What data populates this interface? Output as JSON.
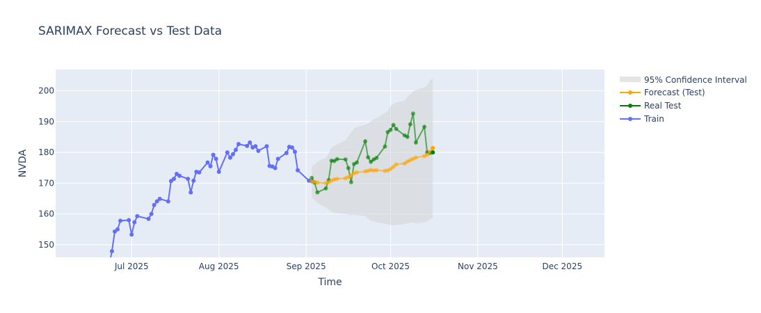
{
  "chart_data": {
    "type": "line",
    "title": "SARIMAX Forecast vs Test Data",
    "xlabel": "Time",
    "ylabel": "NVDA",
    "xlim": [
      "2025-06-04",
      "2025-12-16"
    ],
    "ylim": [
      145.9,
      206.9
    ],
    "grid": true,
    "legend_position": "right",
    "x_ticks": [
      {
        "date": "2025-07-01",
        "label": "Jul 2025"
      },
      {
        "date": "2025-08-01",
        "label": "Aug 2025"
      },
      {
        "date": "2025-09-01",
        "label": "Sep 2025"
      },
      {
        "date": "2025-10-01",
        "label": "Oct 2025"
      },
      {
        "date": "2025-11-01",
        "label": "Nov 2025"
      },
      {
        "date": "2025-12-01",
        "label": "Dec 2025"
      }
    ],
    "y_ticks": [
      150,
      160,
      170,
      180,
      190,
      200
    ],
    "confidence_interval": {
      "name": "95% Confidence Interval",
      "color": "#d3d3d3",
      "x": [
        "2025-09-03",
        "2025-09-04",
        "2025-09-05",
        "2025-09-08",
        "2025-09-09",
        "2025-09-10",
        "2025-09-11",
        "2025-09-12",
        "2025-09-15",
        "2025-09-16",
        "2025-09-17",
        "2025-09-18",
        "2025-09-19",
        "2025-09-22",
        "2025-09-23",
        "2025-09-24",
        "2025-09-25",
        "2025-09-26",
        "2025-09-29",
        "2025-09-30",
        "2025-10-01",
        "2025-10-02",
        "2025-10-03",
        "2025-10-06",
        "2025-10-07",
        "2025-10-08",
        "2025-10-09",
        "2025-10-10",
        "2025-10-13",
        "2025-10-14",
        "2025-10-15",
        "2025-10-16"
      ],
      "upper": [
        175.5,
        176.1,
        177.0,
        178.2,
        179.7,
        181.5,
        182.1,
        182.6,
        184.0,
        185.3,
        186.6,
        187.7,
        188.3,
        188.9,
        189.4,
        190.1,
        190.8,
        191.1,
        192.8,
        193.4,
        195.2,
        195.7,
        196.2,
        196.8,
        198.1,
        198.8,
        199.8,
        200.3,
        201.1,
        201.8,
        203.3,
        204.0
      ],
      "lower": [
        165.3,
        164.5,
        163.5,
        162.1,
        161.5,
        160.8,
        160.4,
        160.2,
        160.0,
        159.7,
        159.6,
        159.8,
        159.6,
        159.3,
        158.4,
        157.8,
        157.6,
        157.3,
        156.8,
        156.7,
        156.4,
        156.3,
        156.4,
        156.7,
        157.0,
        157.2,
        157.2,
        157.0,
        157.3,
        157.6,
        158.3,
        158.7
      ]
    },
    "series": [
      {
        "name": "Forecast (Test)",
        "color": "#ffa500",
        "x": [
          "2025-09-03",
          "2025-09-04",
          "2025-09-05",
          "2025-09-08",
          "2025-09-09",
          "2025-09-10",
          "2025-09-11",
          "2025-09-12",
          "2025-09-15",
          "2025-09-16",
          "2025-09-17",
          "2025-09-18",
          "2025-09-19",
          "2025-09-22",
          "2025-09-23",
          "2025-09-24",
          "2025-09-25",
          "2025-09-26",
          "2025-09-29",
          "2025-09-30",
          "2025-10-01",
          "2025-10-02",
          "2025-10-03",
          "2025-10-06",
          "2025-10-07",
          "2025-10-08",
          "2025-10-09",
          "2025-10-10",
          "2025-10-13",
          "2025-10-14",
          "2025-10-15",
          "2025-10-16"
        ],
        "y": [
          170.6,
          170.4,
          170.2,
          170.0,
          170.3,
          170.8,
          171.2,
          171.4,
          171.6,
          172.0,
          172.5,
          173.2,
          173.5,
          173.8,
          174.0,
          174.3,
          174.1,
          174.2,
          174.0,
          174.1,
          174.6,
          175.3,
          176.1,
          176.4,
          177.0,
          177.5,
          177.9,
          178.3,
          178.8,
          179.2,
          180.3,
          181.4
        ]
      },
      {
        "name": "Real Test",
        "color": "#008000",
        "x": [
          "2025-09-03",
          "2025-09-04",
          "2025-09-05",
          "2025-09-08",
          "2025-09-09",
          "2025-09-10",
          "2025-09-11",
          "2025-09-12",
          "2025-09-15",
          "2025-09-16",
          "2025-09-17",
          "2025-09-18",
          "2025-09-19",
          "2025-09-22",
          "2025-09-23",
          "2025-09-24",
          "2025-09-25",
          "2025-09-26",
          "2025-09-29",
          "2025-09-30",
          "2025-10-01",
          "2025-10-02",
          "2025-10-03",
          "2025-10-06",
          "2025-10-07",
          "2025-10-08",
          "2025-10-09",
          "2025-10-10",
          "2025-10-13",
          "2025-10-14",
          "2025-10-15",
          "2025-10-16"
        ],
        "y": [
          171.7,
          170.2,
          167.0,
          168.3,
          171.0,
          177.3,
          177.2,
          177.8,
          177.7,
          174.9,
          170.3,
          176.2,
          176.7,
          183.6,
          178.4,
          176.9,
          177.7,
          178.2,
          181.9,
          186.6,
          187.3,
          188.9,
          187.6,
          185.5,
          185.0,
          189.1,
          192.6,
          183.2,
          188.3,
          180.0,
          179.8,
          180.0
        ]
      },
      {
        "name": "Train",
        "color": "#636efa",
        "x": [
          "2025-06-20",
          "2025-06-23",
          "2025-06-24",
          "2025-06-25",
          "2025-06-26",
          "2025-06-27",
          "2025-06-30",
          "2025-07-01",
          "2025-07-02",
          "2025-07-03",
          "2025-07-07",
          "2025-07-08",
          "2025-07-09",
          "2025-07-10",
          "2025-07-11",
          "2025-07-14",
          "2025-07-15",
          "2025-07-16",
          "2025-07-17",
          "2025-07-18",
          "2025-07-21",
          "2025-07-22",
          "2025-07-23",
          "2025-07-24",
          "2025-07-25",
          "2025-07-28",
          "2025-07-29",
          "2025-07-30",
          "2025-07-31",
          "2025-08-01",
          "2025-08-04",
          "2025-08-05",
          "2025-08-06",
          "2025-08-07",
          "2025-08-08",
          "2025-08-11",
          "2025-08-12",
          "2025-08-13",
          "2025-08-14",
          "2025-08-15",
          "2025-08-18",
          "2025-08-19",
          "2025-08-20",
          "2025-08-21",
          "2025-08-22",
          "2025-08-25",
          "2025-08-26",
          "2025-08-27",
          "2025-08-28",
          "2025-08-29",
          "2025-09-02",
          "2025-09-03"
        ],
        "y": [
          143.9,
          143.5,
          147.9,
          154.3,
          155.0,
          157.8,
          158.0,
          153.3,
          157.3,
          159.3,
          158.4,
          160.0,
          162.9,
          164.1,
          164.9,
          164.1,
          170.7,
          171.4,
          173.0,
          172.4,
          171.4,
          167.0,
          170.8,
          173.7,
          173.5,
          176.7,
          175.5,
          179.2,
          177.9,
          173.7,
          180.0,
          178.3,
          179.4,
          180.8,
          182.7,
          182.1,
          183.2,
          181.6,
          182.0,
          180.5,
          182.0,
          175.6,
          175.4,
          174.9,
          177.9,
          179.8,
          181.8,
          181.6,
          180.2,
          174.2,
          170.8,
          170.6
        ]
      }
    ]
  }
}
